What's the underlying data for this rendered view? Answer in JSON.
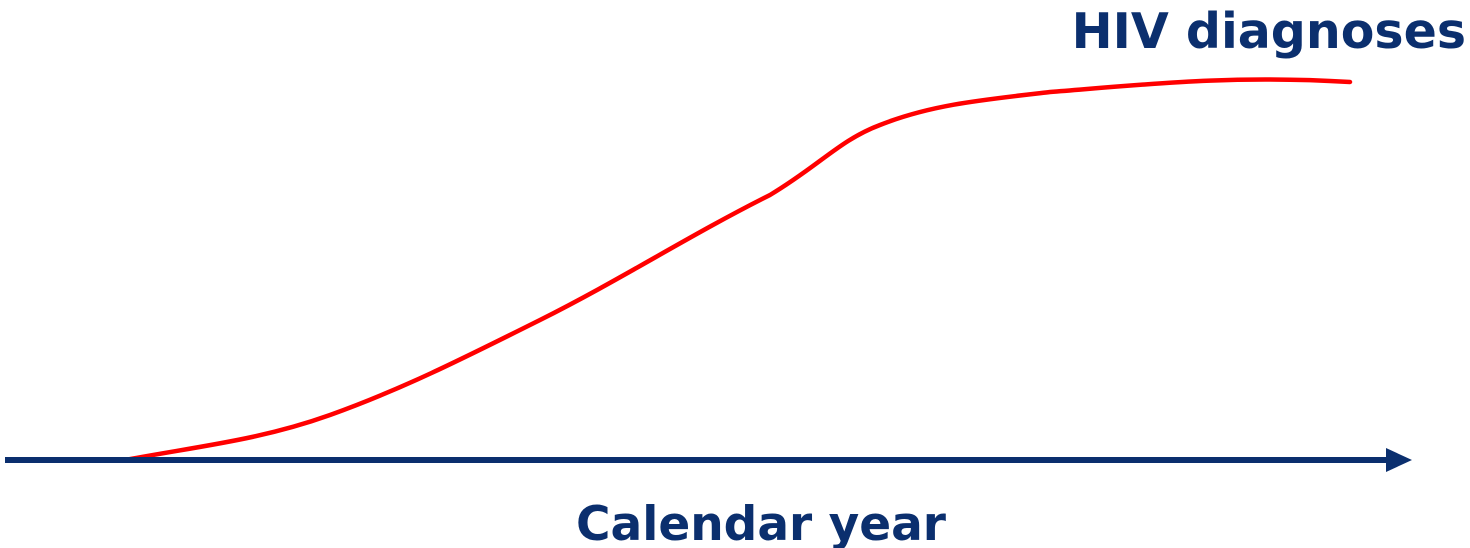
{
  "labels": {
    "curve": "HIV diagnoses",
    "x_axis": "Calendar year"
  }
}
